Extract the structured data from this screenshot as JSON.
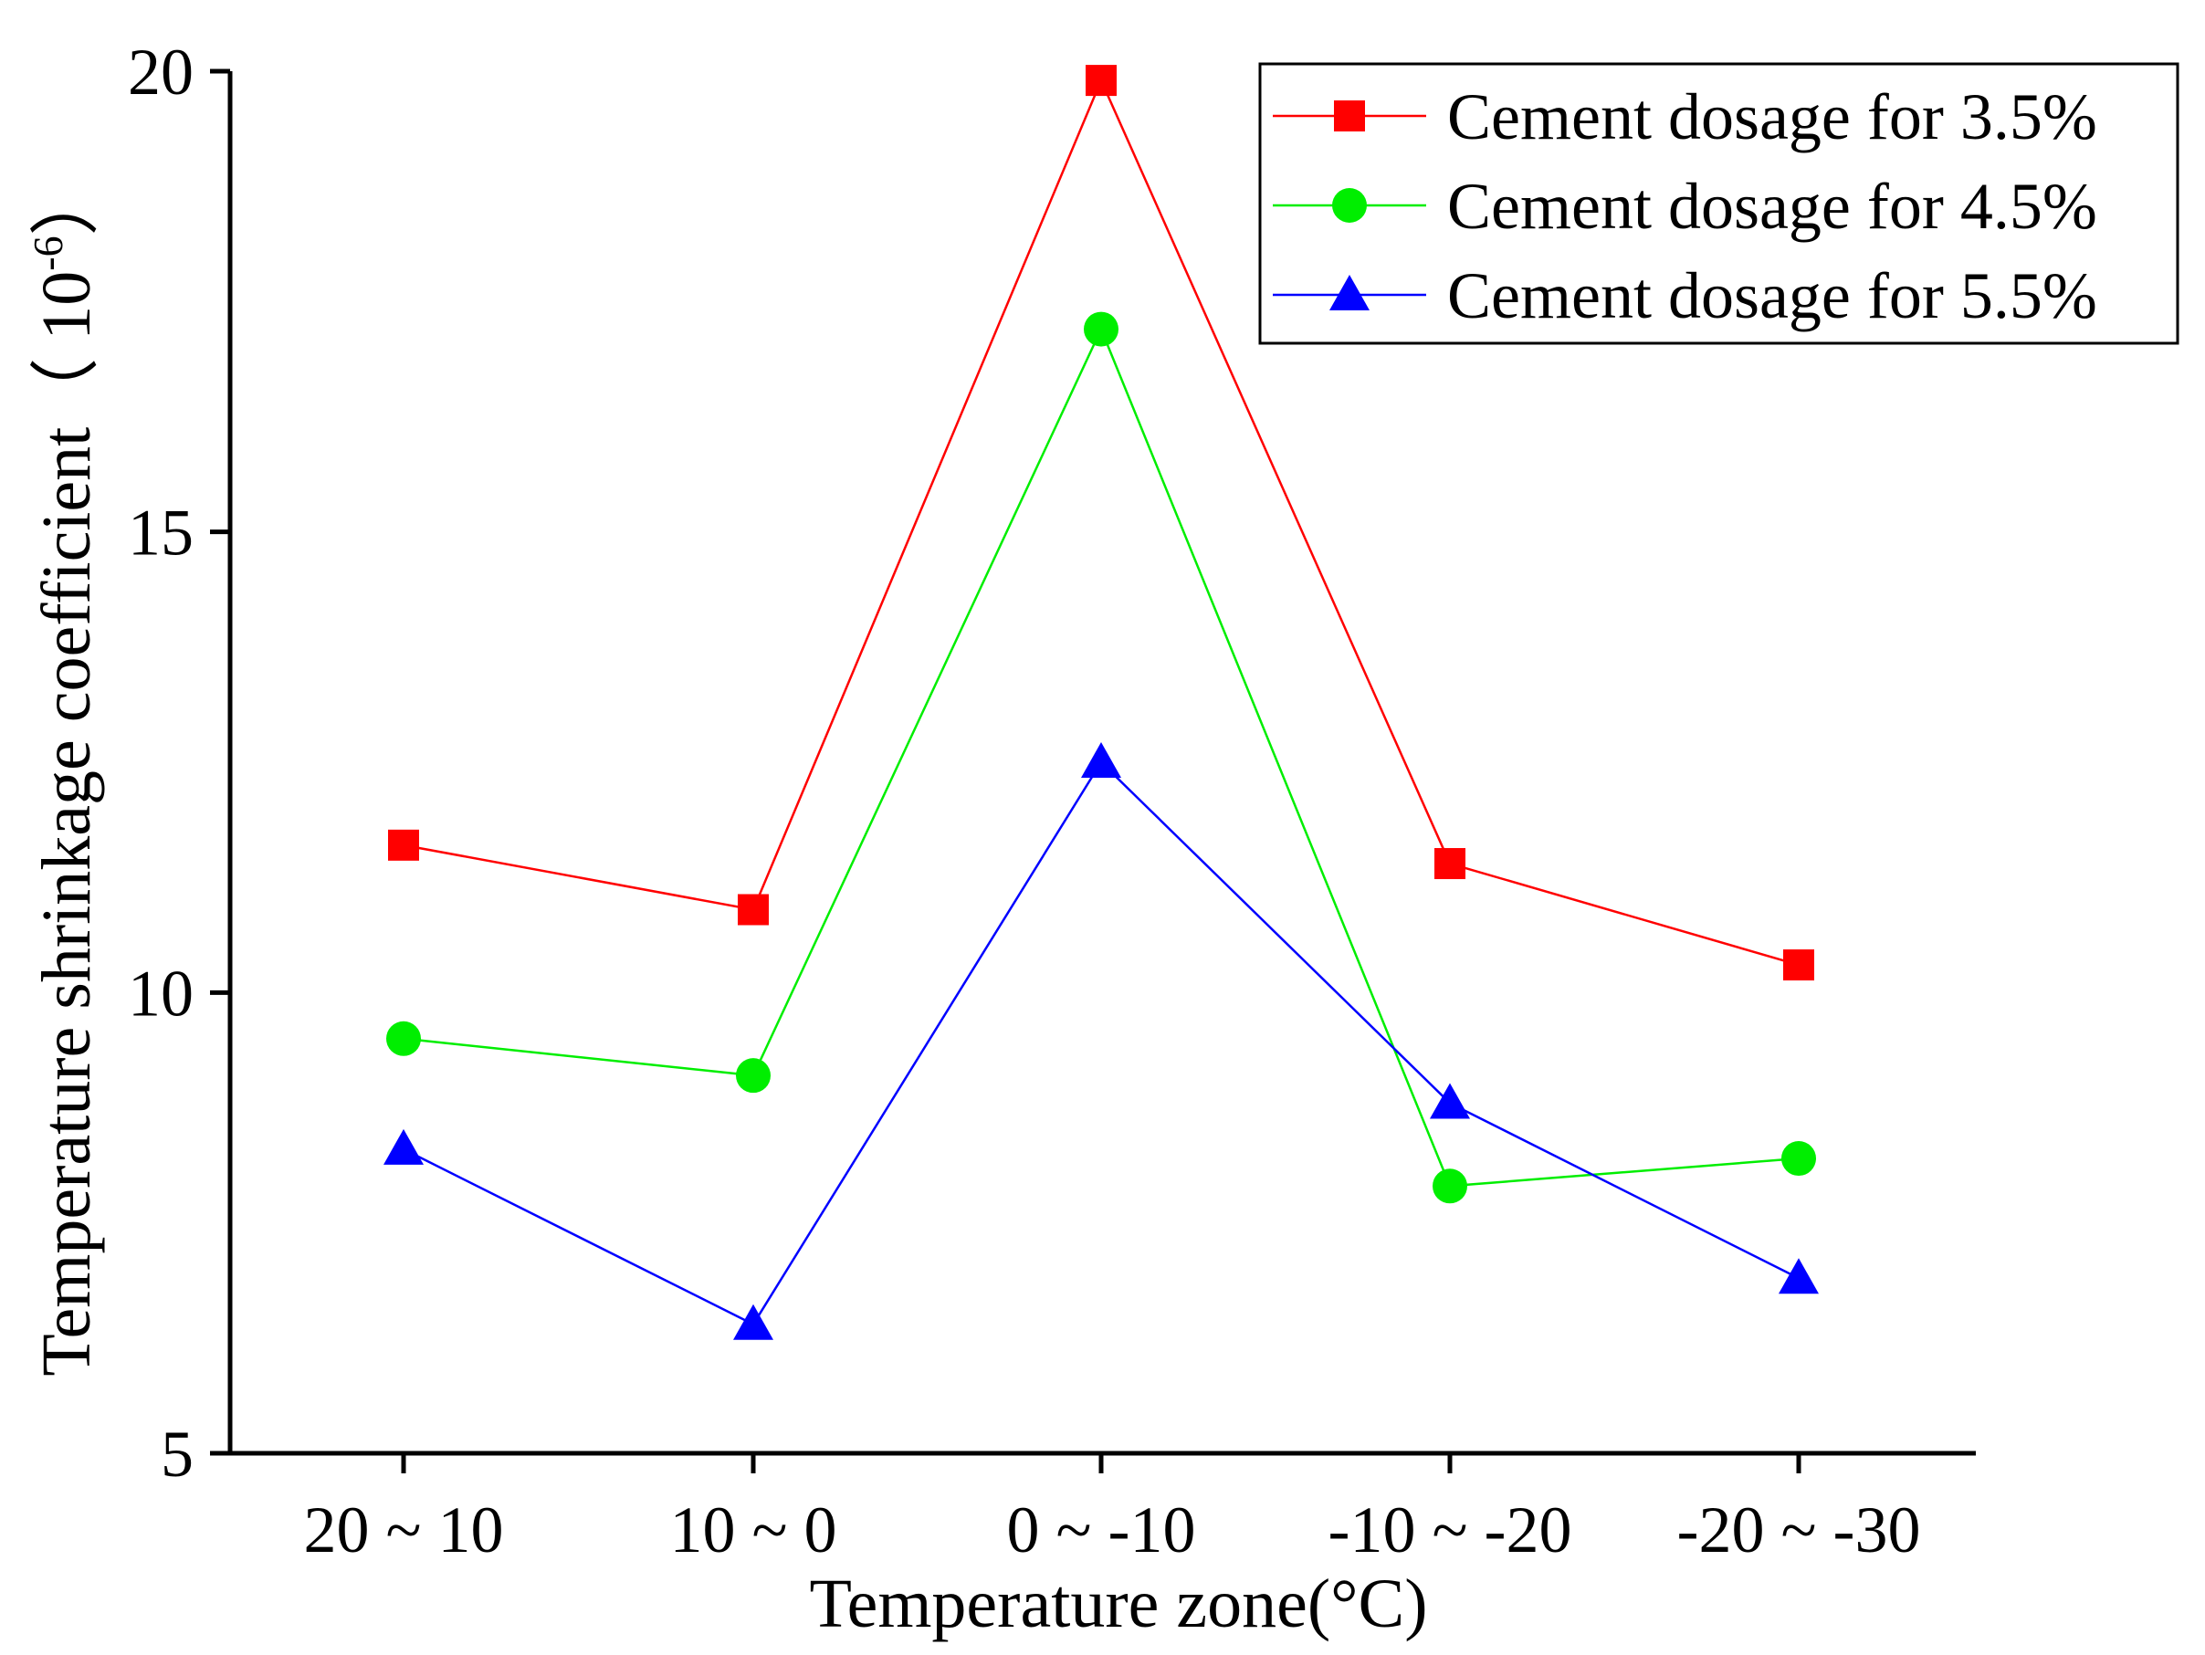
{
  "chart_data": {
    "type": "line",
    "title": "",
    "xlabel": "Temperature zone(°C)",
    "ylabel_main": "Temperature shrinkage coefficient（ 10",
    "ylabel_exponent": "-6",
    "ylabel_close": "）",
    "categories": [
      "20 ~ 10",
      "10 ~ 0",
      "0 ~ -10",
      "-10 ~ -20",
      "-20 ~ -30"
    ],
    "ylim": [
      5,
      20
    ],
    "yticks": [
      5,
      10,
      15,
      20
    ],
    "ytick_labels": [
      "5",
      "10",
      "15",
      "20"
    ],
    "grid": false,
    "legend_position": "top-right",
    "series": [
      {
        "name": "Cement dosage for 3.5%",
        "color": "#ff0000",
        "marker": "square",
        "values": [
          11.6,
          10.9,
          19.9,
          11.4,
          10.3
        ]
      },
      {
        "name": "Cement dosage for 4.5%",
        "color": "#00ee00",
        "marker": "circle",
        "values": [
          9.5,
          9.1,
          17.2,
          7.9,
          8.2
        ]
      },
      {
        "name": "Cement dosage for 5.5%",
        "color": "#0000ff",
        "marker": "triangle",
        "values": [
          8.3,
          6.4,
          12.5,
          8.8,
          6.9
        ]
      }
    ]
  }
}
